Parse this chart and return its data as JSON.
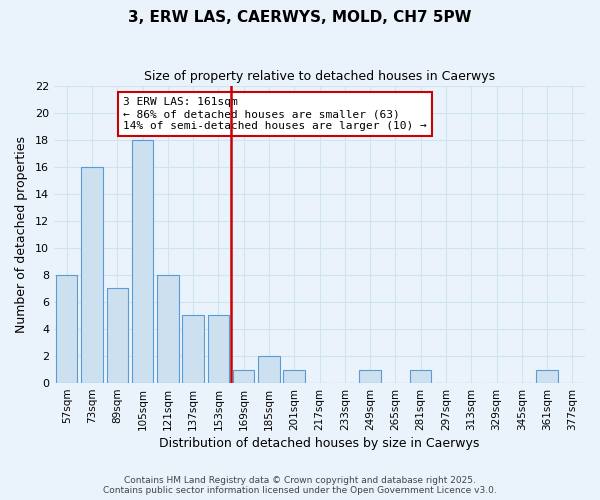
{
  "title": "3, ERW LAS, CAERWYS, MOLD, CH7 5PW",
  "subtitle": "Size of property relative to detached houses in Caerwys",
  "xlabel": "Distribution of detached houses by size in Caerwys",
  "ylabel": "Number of detached properties",
  "bin_labels": [
    "57sqm",
    "73sqm",
    "89sqm",
    "105sqm",
    "121sqm",
    "137sqm",
    "153sqm",
    "169sqm",
    "185sqm",
    "201sqm",
    "217sqm",
    "233sqm",
    "249sqm",
    "265sqm",
    "281sqm",
    "297sqm",
    "313sqm",
    "329sqm",
    "345sqm",
    "361sqm",
    "377sqm"
  ],
  "bar_heights": [
    8,
    16,
    7,
    18,
    8,
    5,
    5,
    1,
    2,
    1,
    0,
    0,
    1,
    0,
    1,
    0,
    0,
    0,
    0,
    1,
    0
  ],
  "bar_color": "#cce0f0",
  "bar_edge_color": "#5b9bd5",
  "grid_color": "#d0e4f0",
  "background_color": "#eaf3fb",
  "vline_color": "#cc0000",
  "annotation_text": "3 ERW LAS: 161sqm\n← 86% of detached houses are smaller (63)\n14% of semi-detached houses are larger (10) →",
  "annotation_box_color": "#ffffff",
  "annotation_box_edge": "#cc0000",
  "ylim": [
    0,
    22
  ],
  "yticks": [
    0,
    2,
    4,
    6,
    8,
    10,
    12,
    14,
    16,
    18,
    20,
    22
  ],
  "footer1": "Contains HM Land Registry data © Crown copyright and database right 2025.",
  "footer2": "Contains public sector information licensed under the Open Government Licence v3.0."
}
